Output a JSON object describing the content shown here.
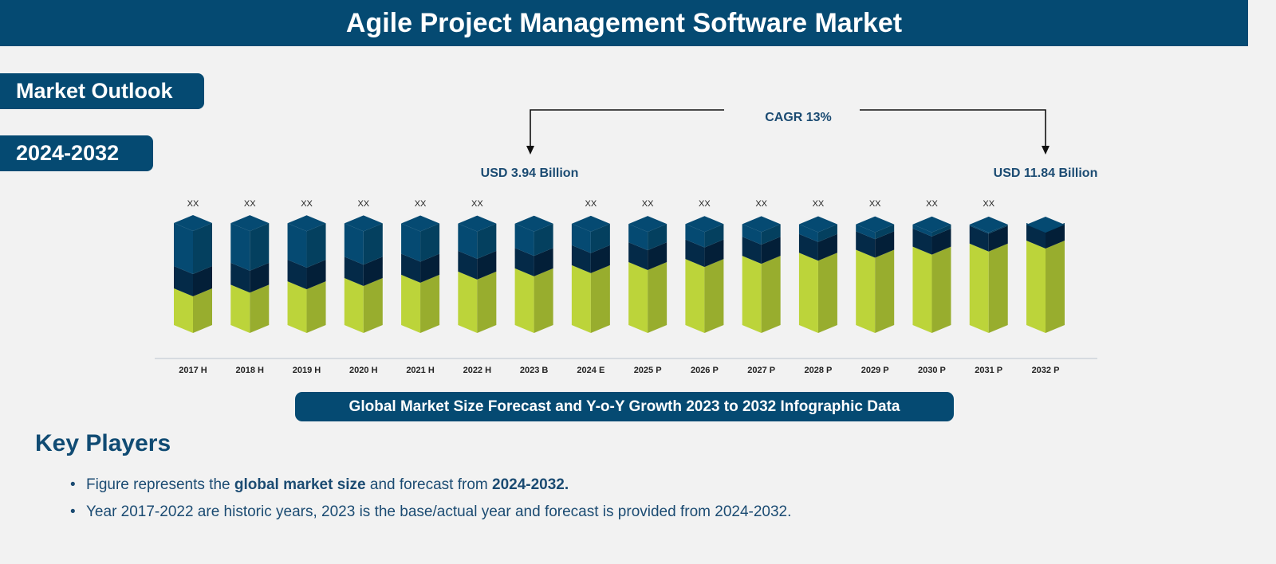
{
  "title": "Agile Project Management Software Market",
  "outlook_label": "Market Outlook",
  "period_label": "2024-2032",
  "cagr_label": "CAGR 13%",
  "start_value_label": "USD 3.94 Billion",
  "end_value_label": "USD 11.84 Billion",
  "caption": "Global Market Size Forecast and Y-o-Y Growth 2023 to 2032 Infographic Data",
  "key_players_heading": "Key Players",
  "notes": {
    "line1_a": "Figure represents the ",
    "line1_b": "global market size",
    "line1_c": " and forecast from ",
    "line1_d": "2024-2032.",
    "line2": "Year 2017-2022 are historic years, 2023 is the base/actual year and forecast is provided from 2024-2032."
  },
  "colors": {
    "top_face": "#054a72",
    "top_side": "#04405f",
    "band_face": "#042a48",
    "band_side": "#031f38",
    "base_face": "#bcd43a",
    "base_side": "#98ad2e"
  },
  "chart_data": {
    "type": "bar",
    "title": "",
    "categories": [
      "2017 H",
      "2018 H",
      "2019 H",
      "2020 H",
      "2021 H",
      "2022 H",
      "2023 B",
      "2024 E",
      "2025 P",
      "2026 P",
      "2027 P",
      "2028 P",
      "2029 P",
      "2030 P",
      "2031 P",
      "2032 P"
    ],
    "value_labels": [
      "XX",
      "XX",
      "XX",
      "XX",
      "XX",
      "XX",
      "",
      "XX",
      "XX",
      "XX",
      "XX",
      "XX",
      "XX",
      "XX",
      "XX",
      ""
    ],
    "series": [
      {
        "values": [
          null,
          null,
          null,
          null,
          null,
          null,
          null,
          3.94,
          null,
          null,
          null,
          null,
          null,
          null,
          null,
          11.84
        ]
      }
    ],
    "cagr": "13%"
  }
}
